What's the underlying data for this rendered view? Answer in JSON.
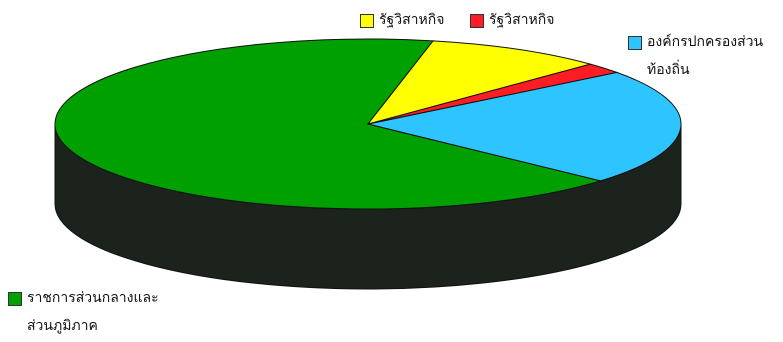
{
  "chart_data": {
    "type": "pie",
    "style": "3d",
    "legend_placement": "around",
    "slices": [
      {
        "label": "ราชการส่วนกลางและส่วนภูมิภาค",
        "value": 65.0,
        "color": "#00a000"
      },
      {
        "label": "องค์กรปกครองส่วนท้องถิ่น",
        "value": 21.5,
        "color": "#2ec4ff"
      },
      {
        "label": "รัฐวิสาหกิจ",
        "value": 2.0,
        "color": "#ff1d25"
      },
      {
        "label": "รัฐวิสาหกิจ",
        "value": 9.0,
        "color": "#ffff00"
      }
    ]
  }
}
